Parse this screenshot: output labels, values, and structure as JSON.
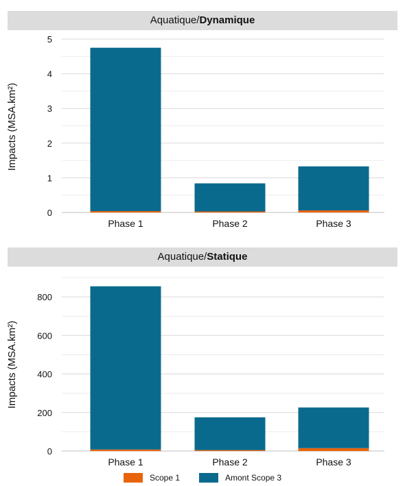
{
  "colors": {
    "scope1": "#e8640c",
    "amont_scope3": "#0a6a8e",
    "gridline": "#d9d9d9",
    "header_bg": "#dcdcdc"
  },
  "legend": {
    "scope1": "Scope 1",
    "amont_scope3": "Amont Scope 3"
  },
  "chart_data": [
    {
      "type": "bar",
      "stacked": true,
      "title_prefix": "Aquatique/",
      "title_bold": "Dynamique",
      "ylabel": "Impacts (MSA.km²)",
      "categories": [
        "Phase 1",
        "Phase 2",
        "Phase 3"
      ],
      "ylim": [
        0,
        5
      ],
      "yticks": [
        "0",
        "1",
        "2",
        "3",
        "4",
        "5"
      ],
      "grid": true,
      "series": [
        {
          "name": "Scope 1",
          "values": [
            0.04,
            0.03,
            0.06
          ]
        },
        {
          "name": "Amont Scope 3",
          "values": [
            4.71,
            0.81,
            1.27
          ]
        }
      ]
    },
    {
      "type": "bar",
      "stacked": true,
      "title_prefix": "Aquatique/",
      "title_bold": "Statique",
      "ylabel": "Impacts (MSA.km²)",
      "categories": [
        "Phase 1",
        "Phase 2",
        "Phase 3"
      ],
      "ylim": [
        0,
        900
      ],
      "yticks": [
        "0",
        "200",
        "400",
        "600",
        "800"
      ],
      "grid": true,
      "series": [
        {
          "name": "Scope 1",
          "values": [
            8,
            5,
            15
          ]
        },
        {
          "name": "Amont Scope 3",
          "values": [
            847,
            170,
            211
          ]
        }
      ]
    }
  ]
}
